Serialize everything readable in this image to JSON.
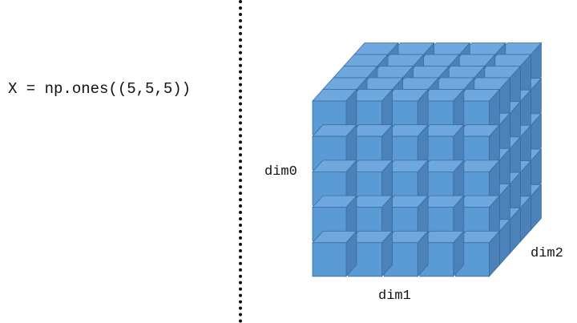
{
  "code": {
    "text": "X = np.ones((5,5,5))"
  },
  "labels": {
    "dim0": "dim0",
    "dim1": "dim1",
    "dim2": "dim2"
  },
  "cube": {
    "shape": [
      5,
      5,
      5
    ],
    "colors": {
      "front": "#5b9bd5",
      "top": "#6ea8df",
      "side": "#4a82b9",
      "edge": "#3a6d9f"
    }
  },
  "divider": {
    "color": "#111111"
  }
}
